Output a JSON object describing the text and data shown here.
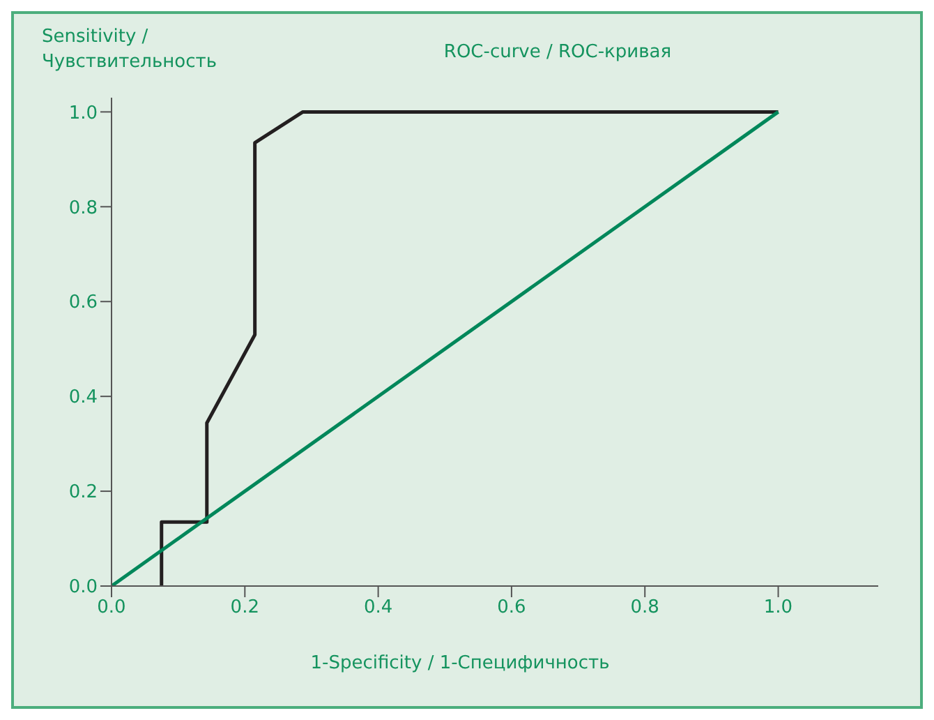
{
  "chart_data": {
    "type": "line",
    "title": "ROC-curve / ROC-кривая",
    "xlabel": "1-Specificity / 1-Специфичность",
    "ylabel": "Sensitivity / Чувствительность",
    "series": [
      {
        "color": "#231f20",
        "x": [
          0.075,
          0.075,
          0.143,
          0.143,
          0.215,
          0.215,
          0.287,
          1.0
        ],
        "values": [
          0,
          0.135,
          0.135,
          0.344,
          0.53,
          0.935,
          1.0,
          1.0
        ]
      },
      {
        "color": "#00875a",
        "x": [
          0,
          1.0
        ],
        "values": [
          0,
          1.0
        ]
      }
    ],
    "xlim": [
      0,
      1.15
    ],
    "ylim": [
      0,
      1.03
    ],
    "xticks": [
      {
        "value": 0,
        "label": "0.0"
      },
      {
        "value": 0.2,
        "label": "0.2"
      },
      {
        "value": 0.4,
        "label": "0.4"
      },
      {
        "value": 0.6,
        "label": "0.6"
      },
      {
        "value": 0.8,
        "label": "0.8"
      },
      {
        "value": 1,
        "label": "1.0"
      }
    ],
    "yticks": [
      {
        "value": 0,
        "label": "0.0"
      },
      {
        "value": 0.2,
        "label": "0.2"
      },
      {
        "value": 0.4,
        "label": "0.4"
      },
      {
        "value": 0.6,
        "label": "0.6"
      },
      {
        "value": 0.8,
        "label": "0.8"
      },
      {
        "value": 1,
        "label": "1.0"
      }
    ],
    "grid": false,
    "marker": "none",
    "line_style": "solid"
  }
}
